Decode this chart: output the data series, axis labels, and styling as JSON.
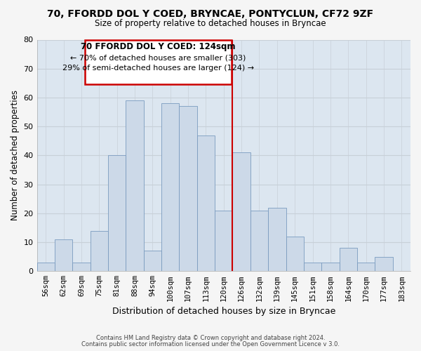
{
  "title": "70, FFORDD DOL Y COED, BRYNCAE, PONTYCLUN, CF72 9ZF",
  "subtitle": "Size of property relative to detached houses in Bryncae",
  "xlabel": "Distribution of detached houses by size in Bryncae",
  "ylabel": "Number of detached properties",
  "bar_color": "#ccd9e8",
  "bar_edge_color": "#7a9bbf",
  "categories": [
    "56sqm",
    "62sqm",
    "69sqm",
    "75sqm",
    "81sqm",
    "88sqm",
    "94sqm",
    "100sqm",
    "107sqm",
    "113sqm",
    "120sqm",
    "126sqm",
    "132sqm",
    "139sqm",
    "145sqm",
    "151sqm",
    "158sqm",
    "164sqm",
    "170sqm",
    "177sqm",
    "183sqm"
  ],
  "values": [
    3,
    11,
    3,
    14,
    40,
    59,
    7,
    58,
    57,
    47,
    21,
    41,
    21,
    22,
    12,
    3,
    3,
    8,
    3,
    5,
    0
  ],
  "vline_color": "#cc0000",
  "annotation_title": "70 FFORDD DOL Y COED: 124sqm",
  "annotation_line1": "← 70% of detached houses are smaller (303)",
  "annotation_line2": "29% of semi-detached houses are larger (124) →",
  "annotation_box_color": "#ffffff",
  "annotation_box_edge_color": "#cc0000",
  "footer1": "Contains HM Land Registry data © Crown copyright and database right 2024.",
  "footer2": "Contains public sector information licensed under the Open Government Licence v 3.0.",
  "ylim": [
    0,
    80
  ],
  "yticks": [
    0,
    10,
    20,
    30,
    40,
    50,
    60,
    70,
    80
  ],
  "grid_color": "#c8d0d8",
  "plot_bg_color": "#dce6f0",
  "fig_bg_color": "#f5f5f5"
}
